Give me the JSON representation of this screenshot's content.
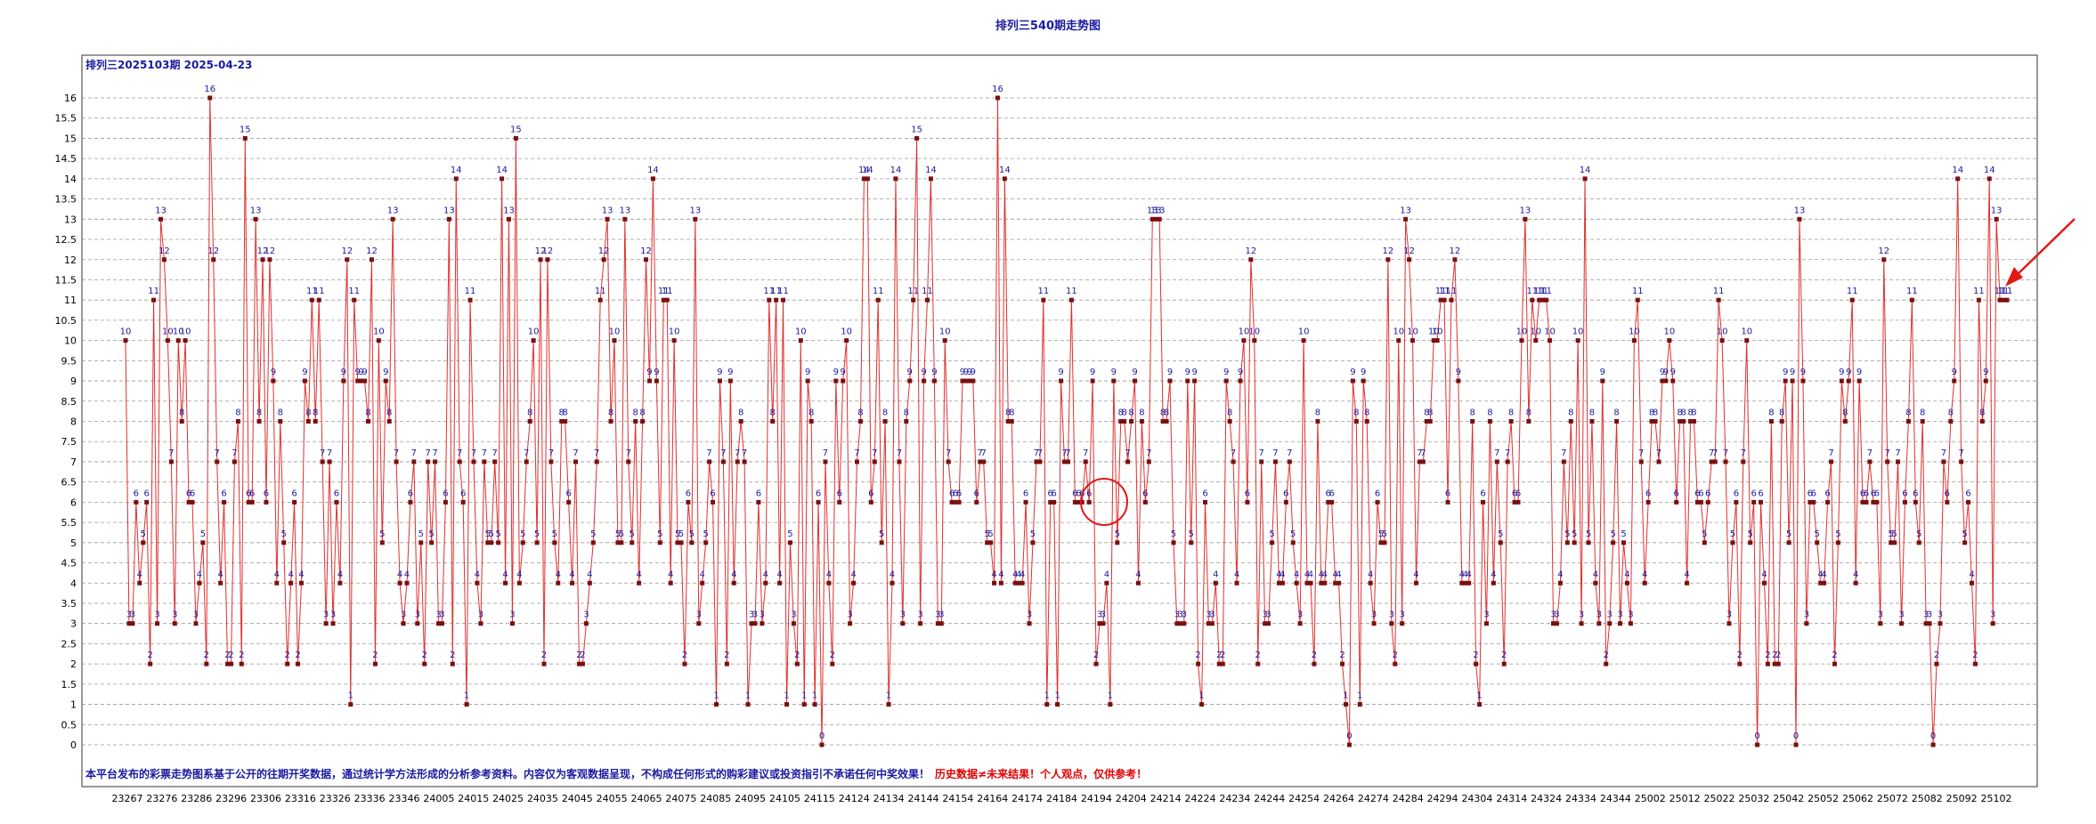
{
  "title": "排列三540期走势图",
  "subtitle": "排列三2025103期  2025-04-23",
  "disclaimer_blue": "本平台发布的彩票走势图系基于公开的往期开奖数据，通过统计学方法形成的分析参考资料。内容仅为客观数据呈现，不构成任何形式的购彩建议或投资指引不承诺任何中奖效果！",
  "disclaimer_red": "历史数据≠未来结果！个人观点，仅供参考！",
  "chart_data": {
    "type": "line",
    "title": "排列三540期走势图",
    "ylim": [
      0,
      16.5
    ],
    "yticks": [
      0,
      0.5,
      1,
      1.5,
      2,
      2.5,
      3,
      3.5,
      4,
      4.5,
      5,
      5.5,
      6,
      6.5,
      7,
      7.5,
      8,
      8.5,
      9,
      9.5,
      10,
      10.5,
      11,
      11.5,
      12,
      12.5,
      13,
      13.5,
      14,
      14.5,
      15,
      15.5,
      16
    ],
    "ytick_labels": [
      "0",
      "0.5",
      "1",
      "1.5",
      "2",
      "2.5",
      "3",
      "3.5",
      "4",
      "4.5",
      "5",
      "5.5",
      "6",
      "6.5",
      "7",
      "7.5",
      "8",
      "8.5",
      "9",
      "9.5",
      "10",
      "10.5",
      "11",
      "11.5",
      "12",
      "12.5",
      "13",
      "13.5",
      "14",
      "14.5",
      "15",
      "15.5",
      "16"
    ],
    "xtick_labels": [
      "23267",
      "23276",
      "23286",
      "23296",
      "23306",
      "23316",
      "23326",
      "23336",
      "23346",
      "24005",
      "24015",
      "24025",
      "24035",
      "24045",
      "24055",
      "24065",
      "24075",
      "24085",
      "24095",
      "24105",
      "24115",
      "24124",
      "24134",
      "24144",
      "24154",
      "24164",
      "24174",
      "24184",
      "24194",
      "24204",
      "24214",
      "24224",
      "24234",
      "24244",
      "24254",
      "24264",
      "24274",
      "24284",
      "24294",
      "24304",
      "24314",
      "24324",
      "24334",
      "24344",
      "25002",
      "25012",
      "25022",
      "25032",
      "25042",
      "25052",
      "25062",
      "25072",
      "25082",
      "25092",
      "25102"
    ],
    "grid": true,
    "series_color": "#e03030",
    "marker_color": "#7a1010",
    "label_color": "#1a1aa0",
    "values": [
      10,
      3,
      3,
      6,
      4,
      5,
      6,
      2,
      11,
      3,
      13,
      12,
      10,
      7,
      3,
      10,
      8,
      10,
      6,
      6,
      3,
      4,
      5,
      2,
      16,
      12,
      7,
      4,
      6,
      2,
      2,
      7,
      8,
      2,
      15,
      6,
      6,
      13,
      8,
      12,
      6,
      12,
      9,
      4,
      8,
      5,
      2,
      4,
      6,
      2,
      4,
      9,
      8,
      11,
      8,
      11,
      7,
      3,
      7,
      3,
      6,
      4,
      9,
      12,
      1,
      11,
      9,
      9,
      9,
      8,
      12,
      2,
      10,
      5,
      9,
      8,
      13,
      7,
      4,
      3,
      4,
      6,
      7,
      3,
      5,
      2,
      7,
      5,
      7,
      3,
      3,
      6,
      13,
      2,
      14,
      7,
      6,
      1,
      11,
      7,
      4,
      3,
      7,
      5,
      5,
      7,
      5,
      14,
      4,
      13,
      3,
      15,
      4,
      5,
      7,
      8,
      10,
      5,
      12,
      2,
      12,
      7,
      5,
      4,
      8,
      8,
      6,
      4,
      7,
      2,
      2,
      3,
      4,
      5,
      7,
      11,
      12,
      13,
      8,
      10,
      5,
      5,
      13,
      7,
      5,
      8,
      4,
      8,
      12,
      9,
      14,
      9,
      5,
      11,
      11,
      4,
      10,
      5,
      5,
      2,
      6,
      5,
      13,
      3,
      4,
      5,
      7,
      6,
      1,
      9,
      7,
      2,
      9,
      4,
      7,
      8,
      7,
      1,
      3,
      3,
      6,
      3,
      4,
      11,
      8,
      11,
      4,
      11,
      1,
      5,
      3,
      2,
      10,
      1,
      9,
      8,
      1,
      6,
      0,
      7,
      4,
      2,
      9,
      6,
      9,
      10,
      3,
      4,
      7,
      8,
      14,
      14,
      6,
      7,
      11,
      5,
      8,
      1,
      4,
      14,
      7,
      3,
      8,
      9,
      11,
      15,
      3,
      9,
      11,
      14,
      9,
      3,
      3,
      10,
      7,
      6,
      6,
      6,
      9,
      9,
      9,
      9,
      6,
      7,
      7,
      5,
      5,
      4,
      16,
      4,
      14,
      8,
      8,
      4,
      4,
      4,
      6,
      3,
      5,
      7,
      7,
      11,
      1,
      6,
      6,
      1,
      9,
      7,
      7,
      11,
      6,
      6,
      6,
      7,
      6,
      9,
      2,
      3,
      3,
      4,
      1,
      9,
      5,
      8,
      8,
      7,
      8,
      9,
      4,
      8,
      6,
      7,
      13,
      13,
      13,
      8,
      8,
      9,
      5,
      3,
      3,
      3,
      9,
      5,
      9,
      2,
      1,
      6,
      3,
      3,
      4,
      2,
      2,
      9,
      8,
      7,
      4,
      9,
      10,
      6,
      12,
      10,
      2,
      7,
      3,
      3,
      5,
      7,
      4,
      4,
      6,
      7,
      5,
      4,
      3,
      10,
      4,
      4,
      2,
      8,
      4,
      4,
      6,
      6,
      4,
      4,
      2,
      1,
      0,
      9,
      8,
      1,
      9,
      8,
      4,
      3,
      6,
      5,
      5,
      12,
      3,
      2,
      10,
      3,
      13,
      12,
      10,
      4,
      7,
      7,
      8,
      8,
      10,
      10,
      11,
      11,
      6,
      11,
      12,
      9,
      4,
      4,
      4,
      8,
      2,
      1,
      6,
      3,
      8,
      4,
      7,
      5,
      2,
      7,
      8,
      6,
      6,
      10,
      13,
      8,
      11,
      10,
      11,
      11,
      11,
      10,
      3,
      3,
      4,
      7,
      5,
      8,
      5,
      10,
      3,
      14,
      5,
      8,
      4,
      3,
      9,
      2,
      3,
      5,
      8,
      3,
      5,
      4,
      3,
      10,
      11,
      7,
      4,
      6,
      8,
      8,
      7,
      9,
      9,
      10,
      9,
      6,
      8,
      8,
      4,
      8,
      8,
      6,
      6,
      5,
      6,
      7,
      7,
      11,
      10,
      7,
      3,
      5,
      6,
      2,
      7,
      10,
      5,
      6,
      0,
      6,
      4,
      2,
      8,
      2,
      2,
      8,
      9,
      5,
      9,
      0,
      13,
      9,
      3,
      6,
      6,
      5,
      4,
      4,
      6,
      7,
      2,
      5,
      9,
      8,
      9,
      11,
      4,
      9,
      6,
      6,
      7,
      6,
      6,
      3,
      12,
      7,
      5,
      5,
      7,
      3,
      6,
      8,
      11,
      6,
      5,
      8,
      3,
      3,
      0,
      2,
      3,
      7,
      6,
      8,
      9,
      14,
      7,
      5,
      6,
      4,
      2,
      11,
      8,
      9,
      14,
      3,
      13,
      11,
      11,
      11
    ]
  }
}
